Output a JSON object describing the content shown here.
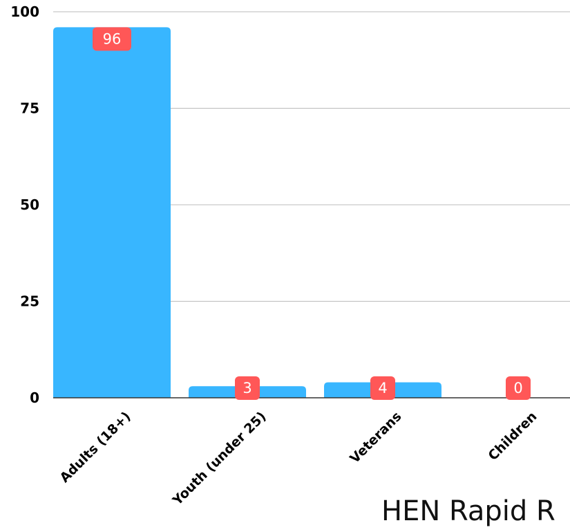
{
  "chart_data": {
    "type": "bar",
    "title": "HEN Rapid R",
    "categories": [
      "Adults (18+)",
      "Youth (under 25)",
      "Veterans",
      "Children"
    ],
    "values": [
      96,
      3,
      4,
      0
    ],
    "data_labels": [
      "96",
      "3",
      "4",
      "0"
    ],
    "yticks": [
      "0",
      "25",
      "50",
      "75",
      "100"
    ],
    "ylim": [
      0,
      100
    ],
    "xlabel": "",
    "ylabel": "",
    "grid": true,
    "colors": {
      "bar": "#38B6FF",
      "label_bg": "#FF5757",
      "grid": "#bbbbbb",
      "axis": "#333333"
    }
  }
}
